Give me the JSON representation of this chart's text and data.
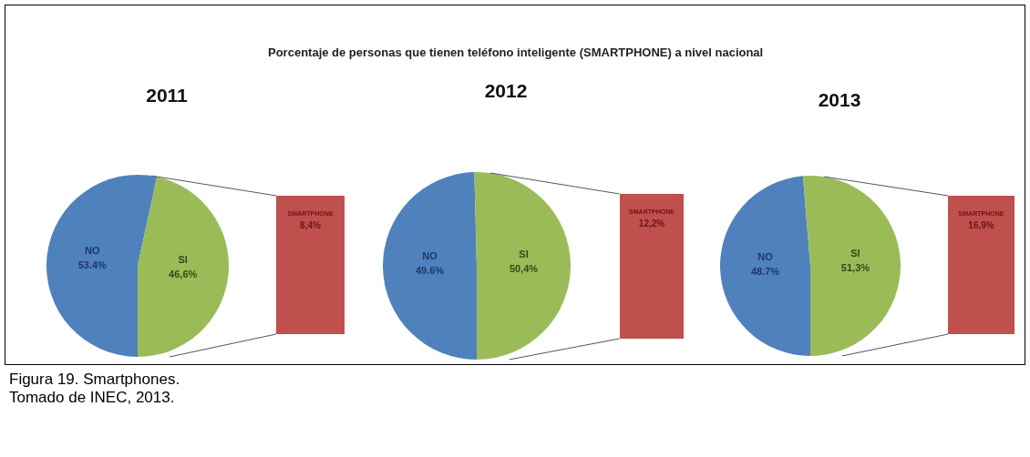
{
  "chart_data": [
    {
      "type": "other",
      "title": "Porcentaje de personas que tienen teléfono inteligente (SMARTPHONE) a nivel nacional"
    },
    {
      "type": "pie",
      "subtitle": "2011",
      "categories": [
        "NO",
        "SI"
      ],
      "values": [
        53.4,
        46.6
      ],
      "colors": [
        "#4f81bd",
        "#9bbb59"
      ],
      "value_labels": [
        "53.4%",
        "46,6%"
      ]
    },
    {
      "type": "other",
      "categories": [
        "SMARTPHONE"
      ],
      "values": [
        8.4
      ],
      "colors": [
        "#c0504d"
      ],
      "value_labels": [
        "8,4%"
      ]
    },
    {
      "type": "pie",
      "subtitle": "2012",
      "categories": [
        "NO",
        "SI"
      ],
      "values": [
        49.6,
        50.4
      ],
      "colors": [
        "#4f81bd",
        "#9bbb59"
      ],
      "value_labels": [
        "49.6%",
        "50,4%"
      ]
    },
    {
      "type": "other",
      "categories": [
        "SMARTPHONE"
      ],
      "values": [
        12.2
      ],
      "colors": [
        "#c0504d"
      ],
      "value_labels": [
        "12,2%"
      ]
    },
    {
      "type": "pie",
      "subtitle": "2013",
      "categories": [
        "NO",
        "SI"
      ],
      "values": [
        48.7,
        51.3
      ],
      "colors": [
        "#4f81bd",
        "#9bbb59"
      ],
      "value_labels": [
        "48.7%",
        "51,3%"
      ]
    },
    {
      "type": "other",
      "categories": [
        "SMARTPHONE"
      ],
      "values": [
        16.9
      ],
      "colors": [
        "#c0504d"
      ],
      "value_labels": [
        "16,9%"
      ]
    },
    {
      "type": "other",
      "annotations": [
        "Figura 19. Smartphones.",
        "Tomado de INEC, 2013."
      ]
    }
  ]
}
